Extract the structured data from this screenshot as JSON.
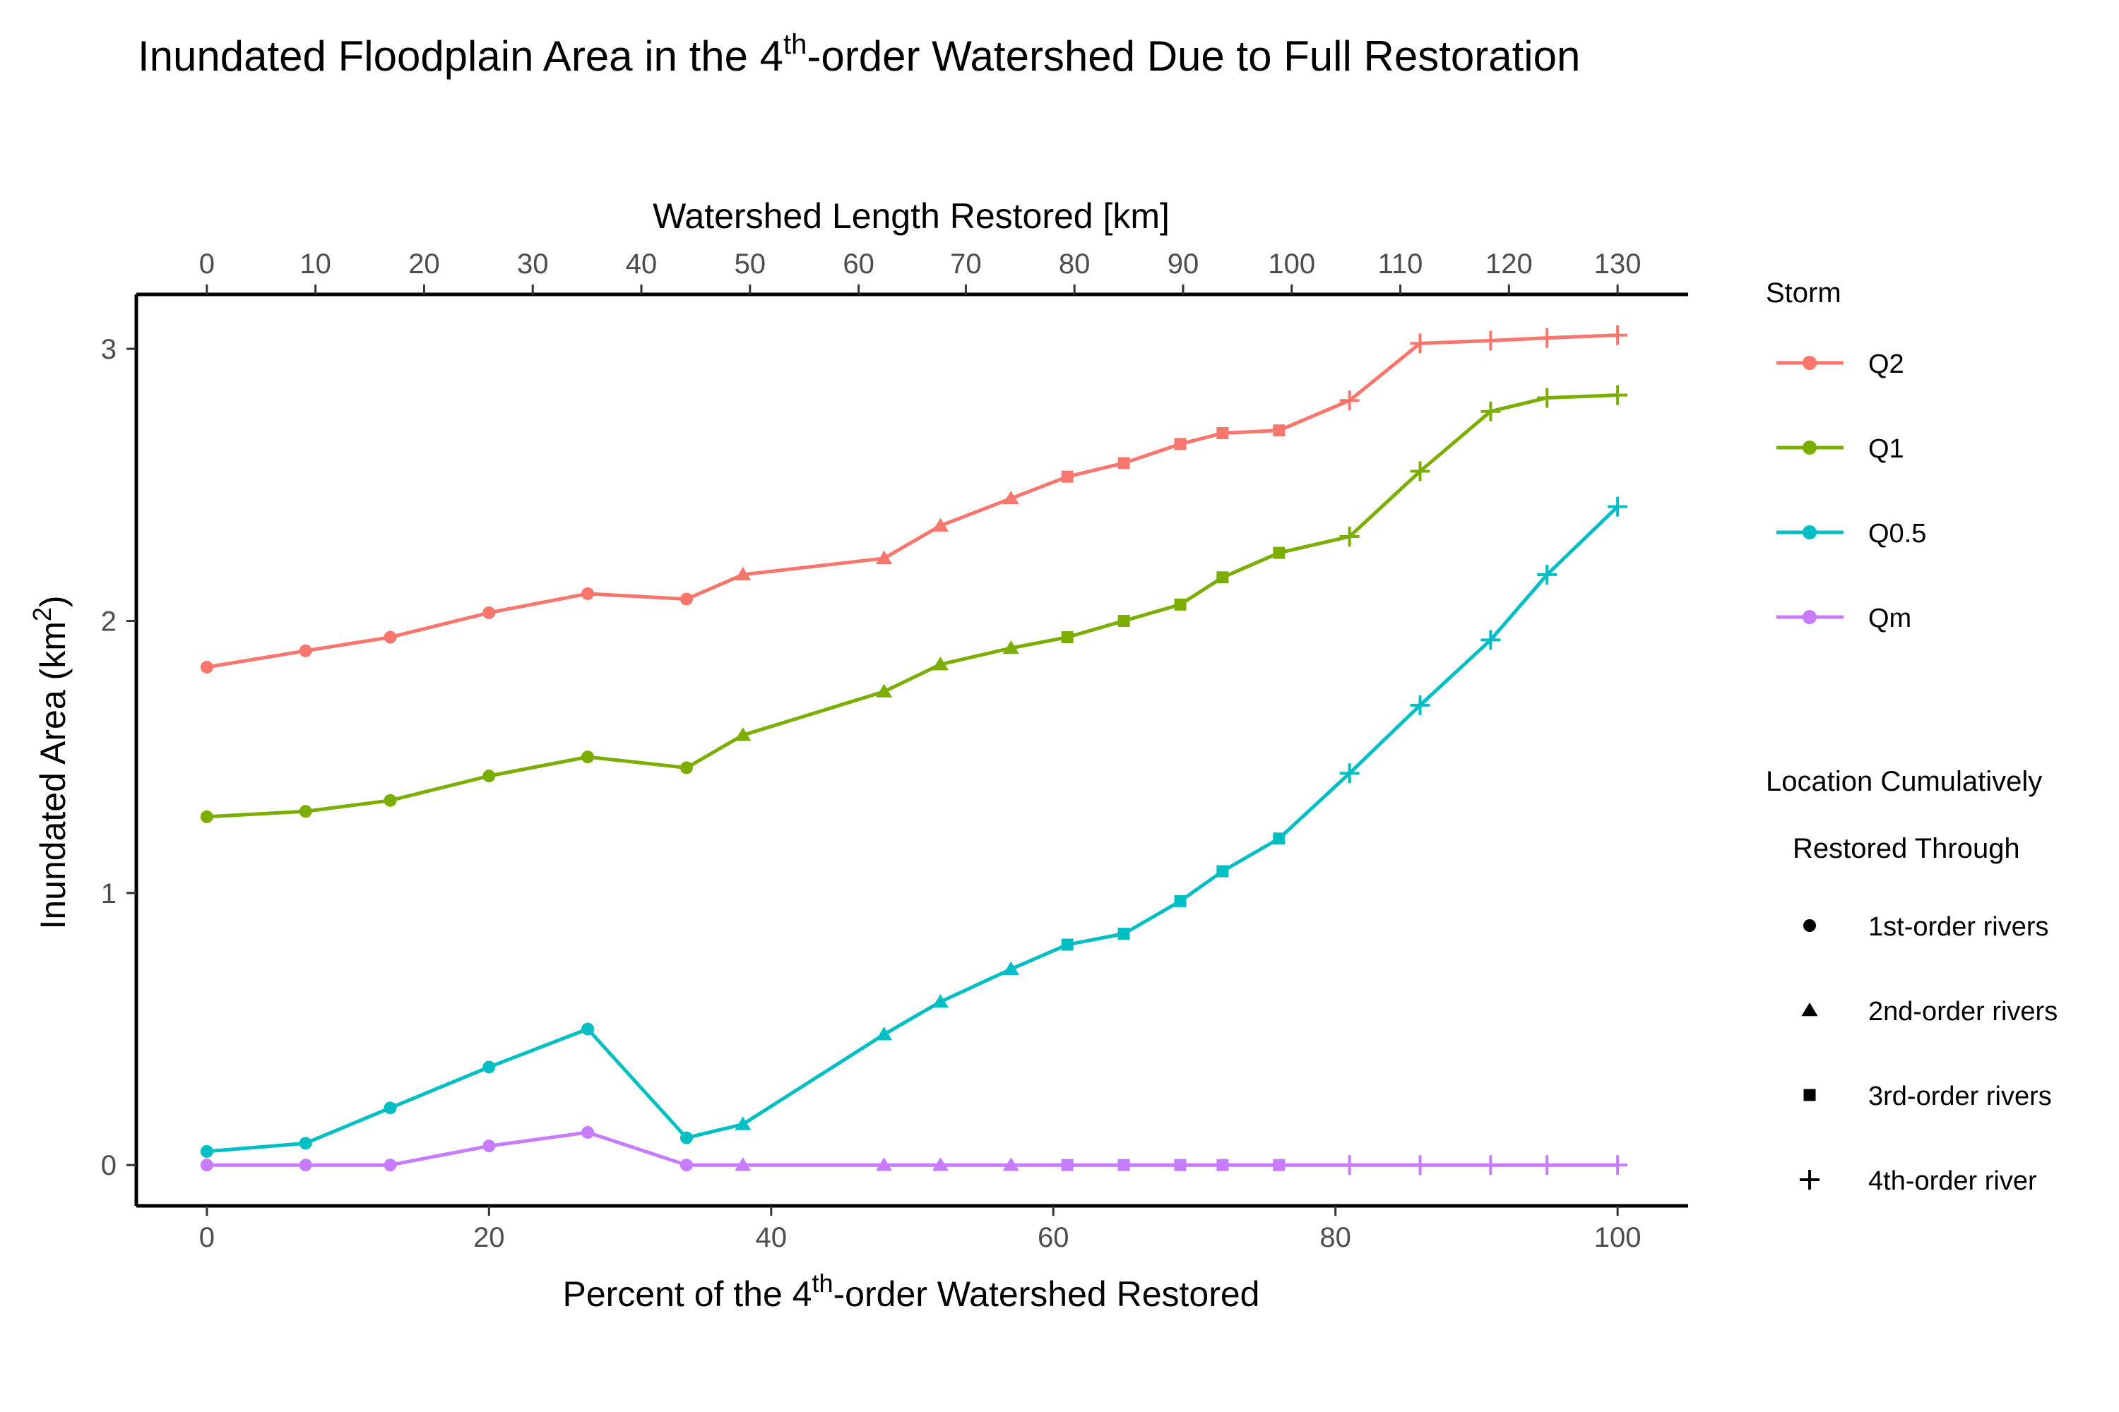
{
  "chart_data": {
    "type": "line",
    "title": "Inundated Floodplain Area in the 4th-order Watershed Due to Full Restoration",
    "title_parts": {
      "pre": "Inundated Floodplain Area in the 4",
      "sup": "th",
      "post": "-order Watershed Due to Full Restoration"
    },
    "xlabel": "Percent of the 4th-order Watershed Restored",
    "xlabel_parts": {
      "pre": "Percent of the 4",
      "sup": "th",
      "post": "-order Watershed Restored"
    },
    "x2label": "Watershed Length Restored [km]",
    "ylabel": "Inundated Area (km2)",
    "ylabel_parts": {
      "pre": "Inundated Area (km",
      "sup": "2",
      "post": ")"
    },
    "xlim": [
      -5,
      105
    ],
    "ylim": [
      -0.15,
      3.2
    ],
    "x_ticks": [
      0,
      20,
      40,
      60,
      80,
      100
    ],
    "y_ticks": [
      0,
      1,
      2,
      3
    ],
    "x2_ticks": [
      {
        "label": "0",
        "pct": 0
      },
      {
        "label": "10",
        "pct": 7.7
      },
      {
        "label": "20",
        "pct": 15.4
      },
      {
        "label": "30",
        "pct": 23.1
      },
      {
        "label": "40",
        "pct": 30.8
      },
      {
        "label": "50",
        "pct": 38.5
      },
      {
        "label": "60",
        "pct": 46.2
      },
      {
        "label": "70",
        "pct": 53.8
      },
      {
        "label": "80",
        "pct": 61.5
      },
      {
        "label": "90",
        "pct": 69.2
      },
      {
        "label": "100",
        "pct": 76.9
      },
      {
        "label": "110",
        "pct": 84.6
      },
      {
        "label": "120",
        "pct": 92.3
      },
      {
        "label": "130",
        "pct": 100
      }
    ],
    "x": [
      0,
      7,
      13,
      20,
      27,
      34,
      38,
      48,
      52,
      57,
      61,
      65,
      69,
      72,
      76,
      81,
      86,
      91,
      95,
      100
    ],
    "location": [
      "circle",
      "circle",
      "circle",
      "circle",
      "circle",
      "circle",
      "triangle",
      "triangle",
      "triangle",
      "triangle",
      "square",
      "square",
      "square",
      "square",
      "square",
      "plus",
      "plus",
      "plus",
      "plus",
      "plus"
    ],
    "series": [
      {
        "name": "Q2",
        "color": "#F8766D",
        "values": [
          1.83,
          1.89,
          1.94,
          2.03,
          2.1,
          2.08,
          2.17,
          2.23,
          2.35,
          2.45,
          2.53,
          2.58,
          2.65,
          2.69,
          2.7,
          2.81,
          3.02,
          3.03,
          3.04,
          3.05
        ]
      },
      {
        "name": "Q1",
        "color": "#7CAE00",
        "values": [
          1.28,
          1.3,
          1.34,
          1.43,
          1.5,
          1.46,
          1.58,
          1.74,
          1.84,
          1.9,
          1.94,
          2.0,
          2.06,
          2.16,
          2.25,
          2.31,
          2.55,
          2.77,
          2.82,
          2.83
        ]
      },
      {
        "name": "Q0.5",
        "color": "#00BFC4",
        "values": [
          0.05,
          0.08,
          0.21,
          0.36,
          0.5,
          0.1,
          0.15,
          0.48,
          0.6,
          0.72,
          0.81,
          0.85,
          0.97,
          1.08,
          1.2,
          1.44,
          1.69,
          1.93,
          2.17,
          2.42
        ]
      },
      {
        "name": "Qm",
        "color": "#C77CFF",
        "values": [
          0.0,
          0.0,
          0.0,
          0.07,
          0.12,
          0.0,
          0.0,
          0.0,
          0.0,
          0.0,
          0.0,
          0.0,
          0.0,
          0.0,
          0.0,
          0.0,
          0.0,
          0.0,
          0.0,
          0.0
        ]
      }
    ],
    "legend": {
      "storm_title": "Storm",
      "location_title_line1": "Location Cumulatively",
      "location_title_line2": "Restored Through",
      "location_items": [
        {
          "shape": "circle",
          "label": "1st-order rivers"
        },
        {
          "shape": "triangle",
          "label": "2nd-order rivers"
        },
        {
          "shape": "square",
          "label": "3rd-order rivers"
        },
        {
          "shape": "plus",
          "label": "4th-order river"
        }
      ]
    }
  }
}
